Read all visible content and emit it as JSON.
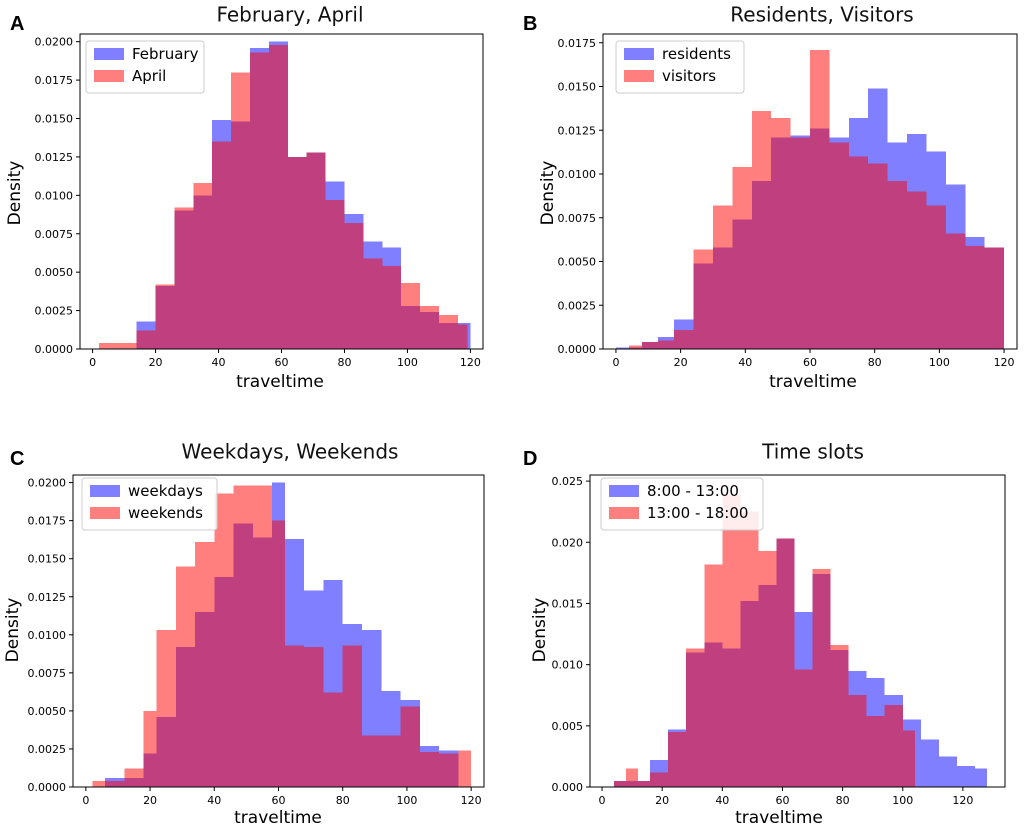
{
  "colors": {
    "series_a": "#0000ff",
    "series_b": "#ff0000",
    "overlap_note": "alpha 0.5 overlay"
  },
  "chart_data": [
    {
      "panel_letter": "A",
      "type": "histogram",
      "title": "February, April",
      "xlabel": "traveltime",
      "ylabel": "Density",
      "xlim": [
        -4,
        124
      ],
      "ylim": [
        0,
        0.0205
      ],
      "xticks": [
        0,
        20,
        40,
        60,
        80,
        100,
        120
      ],
      "xtick_labels": [
        "0",
        "20",
        "40",
        "60",
        "80",
        "100",
        "120"
      ],
      "yticks": [
        0,
        0.0025,
        0.005,
        0.0075,
        0.01,
        0.0125,
        0.015,
        0.0175,
        0.02
      ],
      "ytick_labels": [
        "0.0000",
        "0.0025",
        "0.0050",
        "0.0075",
        "0.0100",
        "0.0125",
        "0.0150",
        "0.0175",
        "0.0200"
      ],
      "legend_loc": "upper left",
      "series": [
        {
          "name": "February",
          "color": "#0000ff",
          "edges": [
            14,
            20,
            26,
            32,
            38,
            44,
            50,
            56,
            62,
            68,
            74,
            80,
            86,
            92,
            98,
            104,
            110,
            116,
            120
          ],
          "values": [
            0.0018,
            0.0041,
            0.009,
            0.01,
            0.0149,
            0.0148,
            0.0196,
            0.02,
            0.0125,
            0.0128,
            0.0109,
            0.0088,
            0.007,
            0.0066,
            0.0028,
            0.0024,
            0.0017,
            0.0017
          ]
        },
        {
          "name": "April",
          "color": "#ff0000",
          "edges": [
            2,
            8,
            14,
            20,
            26,
            32,
            38,
            44,
            50,
            56,
            62,
            68,
            74,
            80,
            86,
            92,
            98,
            104,
            110,
            116,
            119
          ],
          "values": [
            0.0004,
            0.0004,
            0.0012,
            0.0042,
            0.0092,
            0.0108,
            0.0135,
            0.018,
            0.0193,
            0.0198,
            0.0125,
            0.0128,
            0.0097,
            0.0082,
            0.0059,
            0.0054,
            0.0043,
            0.0028,
            0.0022,
            0.0016
          ]
        }
      ]
    },
    {
      "panel_letter": "B",
      "type": "histogram",
      "title": "Residents, Visitors",
      "xlabel": "traveltime",
      "ylabel": "Density",
      "xlim": [
        -4,
        124
      ],
      "ylim": [
        0,
        0.018
      ],
      "xticks": [
        0,
        20,
        40,
        60,
        80,
        100,
        120
      ],
      "xtick_labels": [
        "0",
        "20",
        "40",
        "60",
        "80",
        "100",
        "120"
      ],
      "yticks": [
        0,
        0.0025,
        0.005,
        0.0075,
        0.01,
        0.0125,
        0.015,
        0.0175
      ],
      "ytick_labels": [
        "0.0000",
        "0.0025",
        "0.0050",
        "0.0075",
        "0.0100",
        "0.0125",
        "0.0150",
        "0.0175"
      ],
      "legend_loc": "upper left",
      "series": [
        {
          "name": "residents",
          "color": "#0000ff",
          "edges": [
            0,
            8,
            13,
            18,
            24,
            30,
            36,
            42,
            48,
            54,
            60,
            66,
            72,
            78,
            84,
            90,
            96,
            102,
            108,
            114,
            120
          ],
          "values": [
            0.0001,
            0.0004,
            0.0007,
            0.0017,
            0.0049,
            0.0058,
            0.0074,
            0.0096,
            0.0121,
            0.0122,
            0.0126,
            0.0121,
            0.0132,
            0.0149,
            0.0118,
            0.0123,
            0.0113,
            0.0094,
            0.0064,
            0.0058
          ]
        },
        {
          "name": "visitors",
          "color": "#ff0000",
          "edges": [
            4,
            8,
            13,
            18,
            24,
            30,
            36,
            42,
            48,
            54,
            60,
            66,
            72,
            78,
            84,
            90,
            96,
            102,
            108,
            114,
            120
          ],
          "values": [
            0.0002,
            0.0004,
            0.0005,
            0.0011,
            0.0057,
            0.0082,
            0.0104,
            0.0136,
            0.0132,
            0.0121,
            0.0171,
            0.0118,
            0.011,
            0.0106,
            0.0096,
            0.009,
            0.0082,
            0.0066,
            0.0059,
            0.0058
          ]
        }
      ]
    },
    {
      "panel_letter": "C",
      "type": "histogram",
      "title": "Weekdays, Weekends",
      "xlabel": "traveltime",
      "ylabel": "Density",
      "xlim": [
        -4,
        124
      ],
      "ylim": [
        0,
        0.0205
      ],
      "xticks": [
        0,
        20,
        40,
        60,
        80,
        100,
        120
      ],
      "xtick_labels": [
        "0",
        "20",
        "40",
        "60",
        "80",
        "100",
        "120"
      ],
      "yticks": [
        0,
        0.0025,
        0.005,
        0.0075,
        0.01,
        0.0125,
        0.015,
        0.0175,
        0.02
      ],
      "ytick_labels": [
        "0.0000",
        "0.0025",
        "0.0050",
        "0.0075",
        "0.0100",
        "0.0125",
        "0.0150",
        "0.0175",
        "0.0200"
      ],
      "legend_loc": "upper left",
      "series": [
        {
          "name": "weekdays",
          "color": "#0000ff",
          "edges": [
            6,
            12,
            18,
            22,
            28,
            34,
            40,
            46,
            52,
            58,
            62,
            68,
            74,
            80,
            86,
            92,
            98,
            104,
            110,
            116
          ],
          "values": [
            0.0006,
            0.0006,
            0.0022,
            0.0046,
            0.0092,
            0.0115,
            0.0138,
            0.0173,
            0.0164,
            0.02,
            0.0163,
            0.0129,
            0.0136,
            0.0107,
            0.0103,
            0.0063,
            0.0057,
            0.0027,
            0.0024
          ]
        },
        {
          "name": "weekends",
          "color": "#ff0000",
          "edges": [
            2,
            6,
            12,
            18,
            22,
            28,
            34,
            40,
            46,
            52,
            58,
            62,
            68,
            74,
            80,
            86,
            92,
            98,
            104,
            110,
            116,
            120
          ],
          "values": [
            0.0004,
            0.0004,
            0.0012,
            0.005,
            0.0103,
            0.0145,
            0.0161,
            0.0193,
            0.0198,
            0.0198,
            0.0175,
            0.0093,
            0.0092,
            0.0062,
            0.0093,
            0.0034,
            0.0034,
            0.0053,
            0.0023,
            0.0022,
            0.0024
          ]
        }
      ]
    },
    {
      "panel_letter": "D",
      "type": "histogram",
      "title": "Time slots",
      "xlabel": "traveltime",
      "ylabel": "Density",
      "xlim": [
        -4,
        134
      ],
      "ylim": [
        0,
        0.0255
      ],
      "xticks": [
        0,
        20,
        40,
        60,
        80,
        100,
        120
      ],
      "xtick_labels": [
        "0",
        "20",
        "40",
        "60",
        "80",
        "100",
        "120"
      ],
      "yticks": [
        0,
        0.005,
        0.01,
        0.015,
        0.02,
        0.025
      ],
      "ytick_labels": [
        "0.000",
        "0.005",
        "0.010",
        "0.015",
        "0.020",
        "0.025"
      ],
      "legend_loc": "upper left",
      "series": [
        {
          "name": "8:00 - 13:00",
          "color": "#0000ff",
          "edges": [
            4,
            10,
            16,
            22,
            28,
            34,
            40,
            46,
            52,
            58,
            64,
            70,
            76,
            82,
            88,
            94,
            100,
            106,
            112,
            118,
            124,
            128
          ],
          "values": [
            0.0005,
            0.0005,
            0.0022,
            0.0047,
            0.011,
            0.0118,
            0.0113,
            0.0152,
            0.0165,
            0.0203,
            0.0143,
            0.0174,
            0.0112,
            0.0095,
            0.0089,
            0.0075,
            0.0055,
            0.0039,
            0.0025,
            0.0017,
            0.0015
          ]
        },
        {
          "name": "13:00 - 18:00",
          "color": "#ff0000",
          "edges": [
            4,
            8,
            12,
            16,
            22,
            28,
            34,
            40,
            46,
            52,
            58,
            64,
            70,
            76,
            82,
            88,
            94,
            100,
            104
          ],
          "values": [
            0.0005,
            0.0015,
            0.0005,
            0.0012,
            0.0045,
            0.0113,
            0.0182,
            0.0239,
            0.0225,
            0.0193,
            0.0203,
            0.0096,
            0.0178,
            0.0116,
            0.0075,
            0.0058,
            0.0067,
            0.0046
          ]
        }
      ]
    }
  ]
}
